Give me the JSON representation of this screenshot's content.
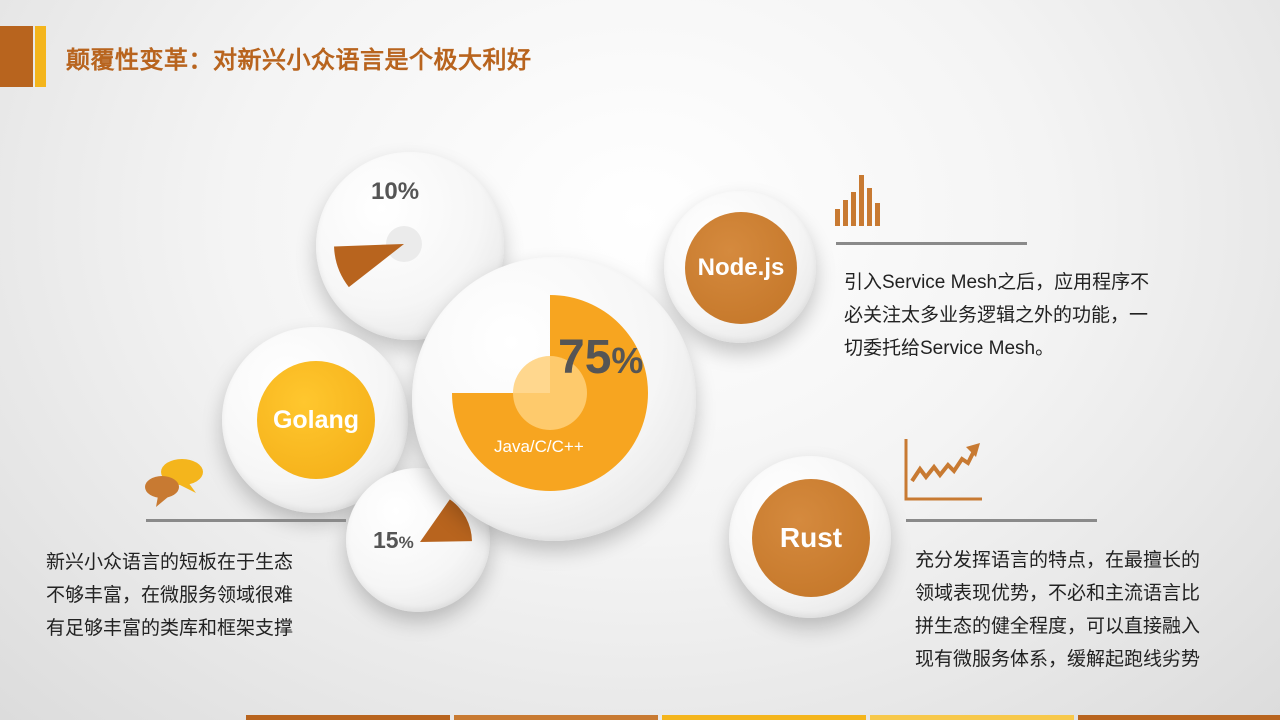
{
  "title": "颠覆性变革：对新兴小众语言是个极大利好",
  "colors": {
    "brown": "#b8641e",
    "orange": "#c87a32",
    "yellow": "#f4b51c",
    "amber": "#f7a520"
  },
  "bubbles": {
    "java": {
      "percent_text": "75",
      "percent_sign": "%",
      "label": "Java/C/C++",
      "fraction": 0.75
    },
    "top_pie": {
      "percent_text": "10%",
      "fraction": 0.1
    },
    "small_pie": {
      "percent_text": "15",
      "percent_sign": "%",
      "fraction": 0.15
    },
    "golang": {
      "label": "Golang"
    },
    "nodejs": {
      "label": "Node.js"
    },
    "rust": {
      "label": "Rust"
    }
  },
  "texts": {
    "nodejs_desc": [
      "引入Service Mesh之后，应用程序不",
      "必关注太多业务逻辑之外的功能，一",
      "切委托给Service Mesh。"
    ],
    "golang_desc": [
      "新兴小众语言的短板在于生态",
      "不够丰富，在微服务领域很难",
      "有足够丰富的类库和框架支撑"
    ],
    "rust_desc": [
      "充分发挥语言的特点，在最擅长的",
      "领域表现优势，不必和主流语言比",
      "拼生态的健全程度，可以直接融入",
      "现有微服务体系，缓解起跑线劣势"
    ]
  },
  "icons": {
    "chart": "bar-chart-icon",
    "trend": "trend-chart-icon",
    "chat": "chat-bubbles-icon"
  }
}
